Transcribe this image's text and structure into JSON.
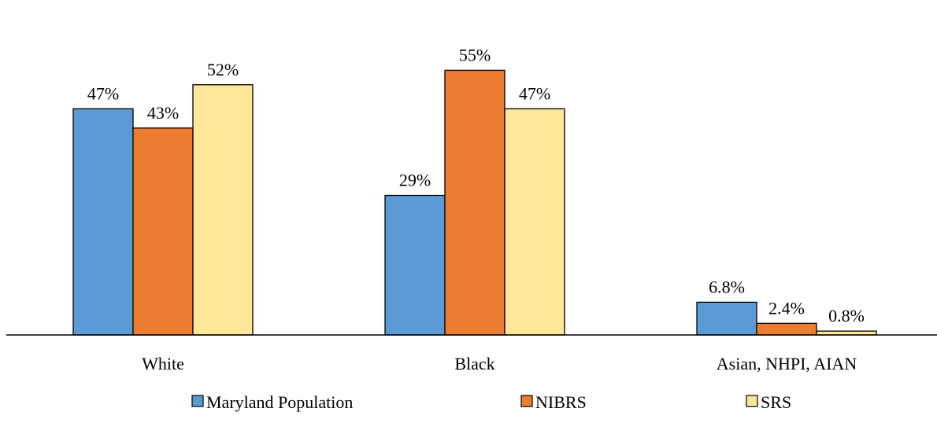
{
  "chart_data": {
    "type": "bar",
    "title": "",
    "xlabel": "",
    "ylabel": "",
    "ylim": [
      0,
      60
    ],
    "grid": false,
    "legend_position": "bottom",
    "categories": [
      "White",
      "Black",
      "Asian, NHPI, AIAN"
    ],
    "series": [
      {
        "name": "Maryland Population",
        "color": "#5b9bd5",
        "values": [
          47,
          29,
          6.8
        ],
        "labels": [
          "47%",
          "29%",
          "6.8%"
        ]
      },
      {
        "name": "NIBRS",
        "color": "#ed7d31",
        "values": [
          43,
          55,
          2.4
        ],
        "labels": [
          "43%",
          "55%",
          "2.4%"
        ]
      },
      {
        "name": "SRS",
        "color": "#ffe699",
        "values": [
          52,
          47,
          0.8
        ],
        "labels": [
          "52%",
          "47%",
          "0.8%"
        ]
      }
    ]
  }
}
